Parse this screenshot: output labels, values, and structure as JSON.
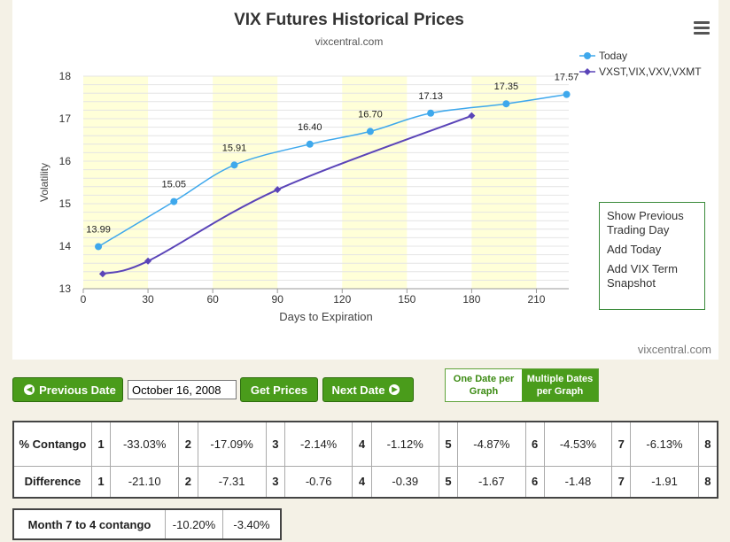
{
  "chart": {
    "title": "VIX Futures Historical Prices",
    "subtitle": "vixcentral.com",
    "credit": "vixcentral.com",
    "menu_icon": "hamburger-icon",
    "legend": [
      "Today",
      "VXST,VIX,VXV,VXMT"
    ],
    "context_menu": [
      "Show Previous Trading Day",
      "Add Today",
      "Add VIX Term Snapshot"
    ]
  },
  "chart_data": {
    "type": "line",
    "xlabel": "Days to Expiration",
    "ylabel": "Volatility",
    "xlim": [
      0,
      225
    ],
    "ylim": [
      13,
      18
    ],
    "x_ticks": [
      0,
      30,
      60,
      90,
      120,
      150,
      180,
      210
    ],
    "y_ticks": [
      13,
      14,
      15,
      16,
      17,
      18
    ],
    "shaded_bands": [
      [
        0,
        30
      ],
      [
        60,
        90
      ],
      [
        120,
        150
      ],
      [
        180,
        210
      ]
    ],
    "colors": {
      "today": "#3ea8ec",
      "term": "#5a44b8",
      "band": "#ffffd8"
    },
    "series": [
      {
        "name": "Today",
        "marker": "circle",
        "points": [
          [
            7,
            13.99
          ],
          [
            42,
            15.05
          ],
          [
            70,
            15.91
          ],
          [
            105,
            16.4
          ],
          [
            133,
            16.7
          ],
          [
            161,
            17.13
          ],
          [
            196,
            17.35
          ],
          [
            224,
            17.57
          ]
        ],
        "labels": [
          "13.99",
          "15.05",
          "15.91",
          "16.40",
          "16.70",
          "17.13",
          "17.35",
          "17.57"
        ]
      },
      {
        "name": "VXST,VIX,VXV,VXMT",
        "marker": "diamond",
        "points": [
          [
            9,
            13.35
          ],
          [
            30,
            13.65
          ],
          [
            90,
            15.33
          ],
          [
            180,
            17.07
          ]
        ]
      }
    ]
  },
  "controls": {
    "prev_label": "Previous Date",
    "date_value": "October 16, 2008",
    "get_label": "Get Prices",
    "next_label": "Next Date",
    "toggle_one": "One Date per Graph",
    "toggle_multi": "Multiple Dates per Graph"
  },
  "contango_table": {
    "row1_label": "% Contango",
    "row2_label": "Difference",
    "months": [
      "1",
      "2",
      "3",
      "4",
      "5",
      "6",
      "7",
      "8"
    ],
    "contango": [
      "-33.03%",
      "-17.09%",
      "-2.14%",
      "-1.12%",
      "-4.87%",
      "-4.53%",
      "-6.13%"
    ],
    "difference": [
      "-21.10",
      "-7.31",
      "-0.76",
      "-0.39",
      "-1.67",
      "-1.48",
      "-1.91"
    ]
  },
  "month74": {
    "label": "Month 7 to 4 contango",
    "values": [
      "-10.20%",
      "-3.40%"
    ]
  }
}
